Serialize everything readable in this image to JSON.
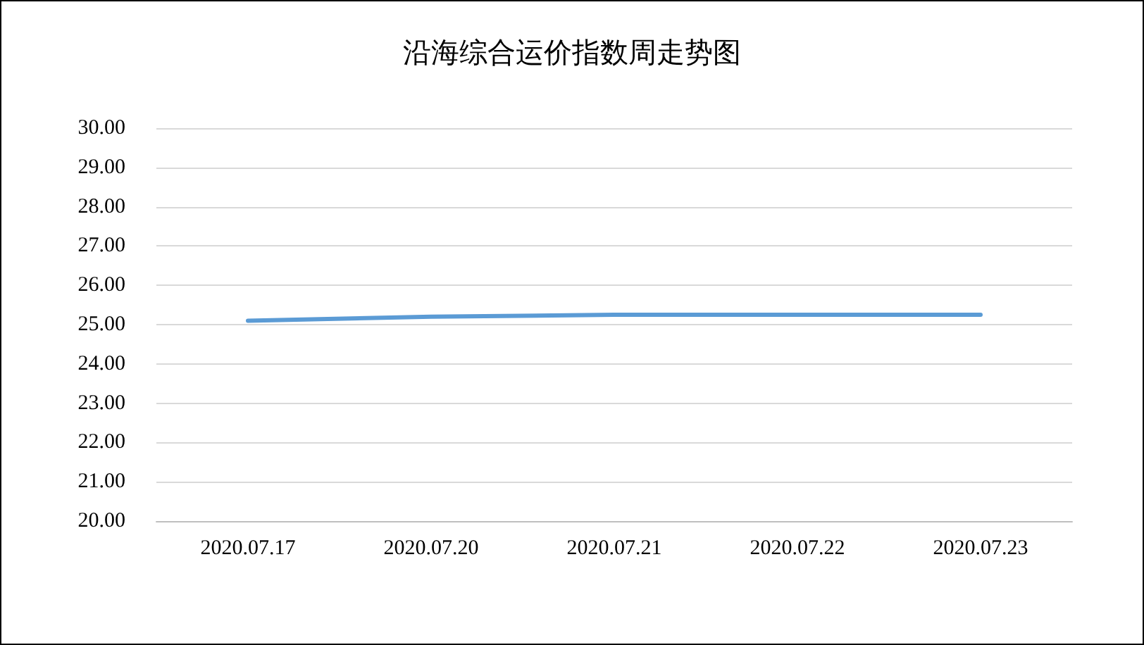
{
  "chart_data": {
    "type": "line",
    "title": "沿海综合运价指数周走势图",
    "categories": [
      "2020.07.17",
      "2020.07.20",
      "2020.07.21",
      "2020.07.22",
      "2020.07.23"
    ],
    "series": [
      {
        "color": "#5b9bd5",
        "values": [
          25.1,
          25.2,
          25.25,
          25.25,
          25.25
        ]
      }
    ],
    "ylim": [
      20,
      30
    ],
    "yticks": [
      {
        "value": 20,
        "label": "20.00"
      },
      {
        "value": 21,
        "label": "21.00"
      },
      {
        "value": 22,
        "label": "22.00"
      },
      {
        "value": 23,
        "label": "23.00"
      },
      {
        "value": 24,
        "label": "24.00"
      },
      {
        "value": 25,
        "label": "25.00"
      },
      {
        "value": 26,
        "label": "26.00"
      },
      {
        "value": 27,
        "label": "27.00"
      },
      {
        "value": 28,
        "label": "28.00"
      },
      {
        "value": 29,
        "label": "29.00"
      },
      {
        "value": 30,
        "label": "30.00"
      }
    ],
    "grid": "y",
    "marker": "none",
    "line_style": "solid"
  }
}
